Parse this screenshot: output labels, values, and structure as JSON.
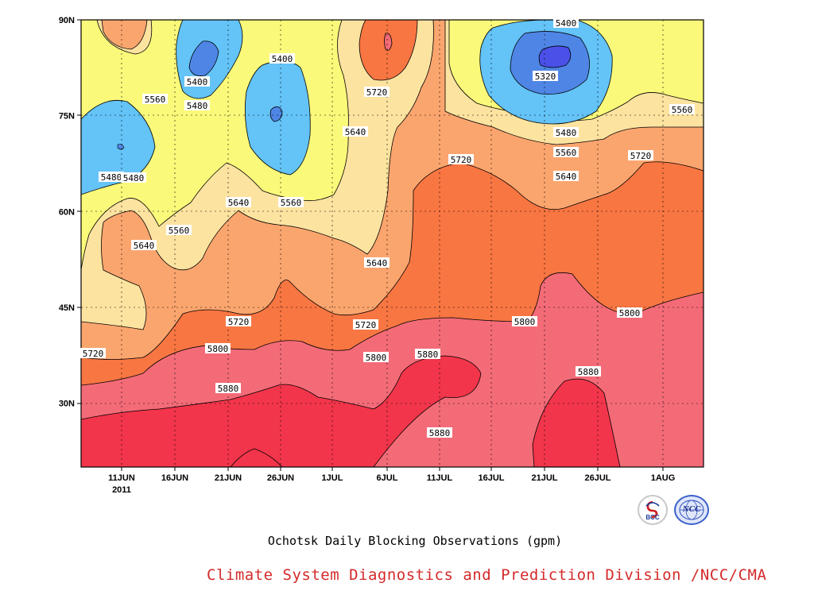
{
  "caption": "Ochotsk Daily Blocking Observations (gpm)",
  "credit": "Climate System Diagnostics and Prediction Division /NCC/CMA",
  "logos": [
    {
      "name": "bcc-logo",
      "text": "BCC",
      "icon": "bcc-emblem"
    },
    {
      "name": "ncc-logo",
      "text": "NCC",
      "icon": "ncc-globe-emblem"
    }
  ],
  "chart_data": {
    "type": "heatmap",
    "subtype": "filled-contour",
    "title": "Ochotsk Daily Blocking Observations (gpm)",
    "x_axis": {
      "range": [
        "2011-06-06",
        "2011-08-06"
      ],
      "tick_labels": [
        "11JUN",
        "16JUN",
        "21JUN",
        "26JUN",
        "1JUL",
        "6JUL",
        "11JUL",
        "16JUL",
        "21JUL",
        "26JUL",
        "1AUG"
      ],
      "year_label": "2011"
    },
    "y_axis": {
      "range": [
        20,
        90
      ],
      "unit": "latitude",
      "tick_labels": [
        "30N",
        "45N",
        "60N",
        "75N",
        "90N"
      ]
    },
    "grid": "dotted",
    "contour_levels": [
      5320,
      5400,
      5480,
      5560,
      5640,
      5720,
      5800,
      5880
    ],
    "contour_labels": [
      "5400",
      "5480",
      "5560",
      "5480",
      "5560",
      "5480",
      "5400",
      "5320",
      "5640",
      "5720",
      "5560",
      "5640",
      "5720",
      "5560",
      "5640",
      "5720",
      "5800",
      "5880",
      "5640",
      "5720",
      "5720",
      "5800",
      "5800",
      "5800",
      "5880",
      "5880",
      "5880",
      "5720",
      "5480",
      "5560",
      "5640",
      "5400"
    ],
    "colors": {
      "below_5320": "#4a50e8",
      "5320-5400": "#4f86e6",
      "5400-5480": "#64c3f7",
      "5480-5560": "#fbf97a",
      "5560-5640": "#fde3a0",
      "5640-5720": "#fba56e",
      "5720-5800": "#f87642",
      "5800-5880": "#f46b78",
      "above_5880": "#f2354a"
    }
  }
}
